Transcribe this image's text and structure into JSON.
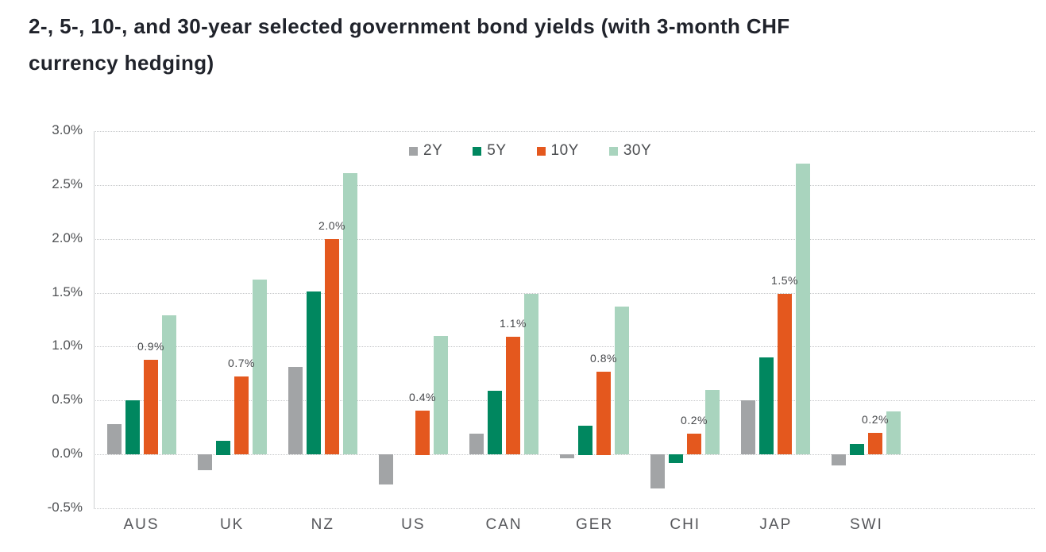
{
  "header": {
    "title_line1": "2-, 5-, 10-, and 30-year selected government bond yields (with 3-month CHF",
    "title_line2": "currency hedging)"
  },
  "chart_data": {
    "type": "bar",
    "title": "2-, 5-, 10-, and 30-year selected government bond yields (with 3-month CHF currency hedging)",
    "categories": [
      "AUS",
      "UK",
      "NZ",
      "US",
      "CAN",
      "GER",
      "CHI",
      "JAP",
      "SWI"
    ],
    "series": [
      {
        "name": "2Y",
        "color": "#a2a4a6",
        "values": [
          0.28,
          -0.15,
          0.81,
          -0.28,
          0.19,
          -0.04,
          -0.32,
          0.5,
          -0.1
        ]
      },
      {
        "name": "5Y",
        "color": "#00875f",
        "values": [
          0.5,
          0.13,
          1.51,
          0.0,
          0.59,
          0.27,
          -0.08,
          0.9,
          0.1
        ]
      },
      {
        "name": "10Y",
        "color": "#e4581e",
        "values": [
          0.88,
          0.72,
          2.0,
          0.41,
          1.09,
          0.77,
          0.19,
          1.49,
          0.2
        ]
      },
      {
        "name": "30Y",
        "color": "#a9d4be",
        "values": [
          1.29,
          1.62,
          2.61,
          1.1,
          1.49,
          1.37,
          0.6,
          2.7,
          0.4
        ]
      }
    ],
    "data_labels": {
      "series": "10Y",
      "values": [
        "0.9%",
        "0.7%",
        "2.0%",
        "0.4%",
        "1.1%",
        "0.8%",
        "0.2%",
        "1.5%",
        "0.2%"
      ]
    },
    "ylim": [
      -0.5,
      3.0
    ],
    "yticks": [
      3.0,
      2.5,
      2.0,
      1.5,
      1.0,
      0.5,
      0.0,
      -0.5
    ],
    "ytick_labels": [
      "3.0%",
      "2.5%",
      "2.0%",
      "1.5%",
      "1.0%",
      "0.5%",
      "0.0%",
      "-0.5%"
    ],
    "xlabel": "",
    "ylabel": "",
    "grid": "horizontal-dotted",
    "legend": {
      "position": "top-inside",
      "entries": [
        "2Y",
        "5Y",
        "10Y",
        "30Y"
      ]
    }
  },
  "colors": {
    "title_text": "#20232b",
    "axis_text": "#4f5154",
    "gridline": "#c4c6c8",
    "axis_line": "#cfd1d3",
    "background": "#ffffff"
  }
}
